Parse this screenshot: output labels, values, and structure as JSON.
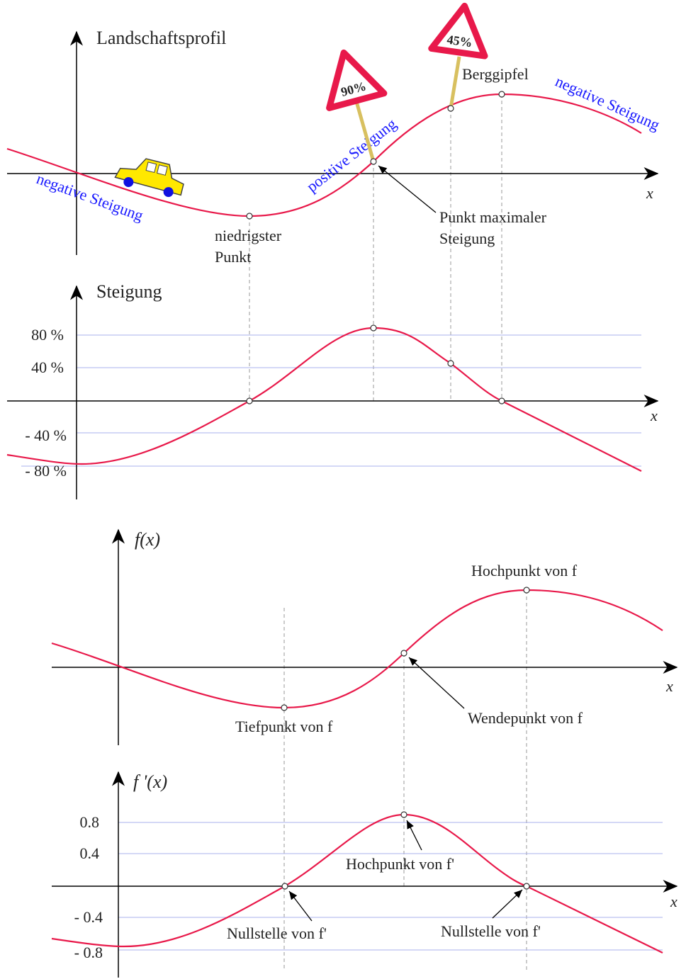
{
  "panels": [
    {
      "title": "Landschaftsprofil",
      "x_label": "x",
      "slope_labels": [
        "negative Steigung",
        "positive Steigung",
        "negative Steigung"
      ],
      "lowest_point": [
        "niedrigster",
        "Punkt"
      ],
      "max_slope_point": [
        "Punkt maximaler",
        "Steigung"
      ],
      "summit": "Berggipfel",
      "signs": [
        "90%",
        "45%"
      ]
    },
    {
      "title": "Steigung",
      "x_label": "x",
      "ticks": [
        "80 %",
        "40 %",
        "- 40 %",
        "- 80 %"
      ]
    },
    {
      "title": "f(x)",
      "x_label": "x",
      "maximum": "Hochpunkt von f",
      "minimum": "Tiefpunkt von f",
      "inflection": "Wendepunkt von f"
    },
    {
      "title": "f '(x)",
      "x_label": "x",
      "ticks": [
        "0.8",
        "0.4",
        "- 0.4",
        "- 0.8"
      ],
      "maximum": "Hochpunkt von f'",
      "zeros": [
        "Nullstelle von f'",
        "Nullstelle von f'"
      ]
    }
  ]
}
